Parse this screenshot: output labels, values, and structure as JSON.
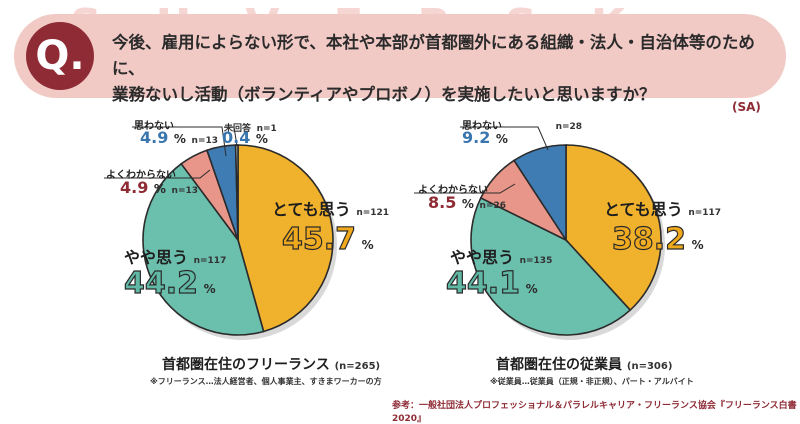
{
  "question": {
    "badge": "Q.",
    "line1": "今後、雇用によらない形で、本社や本部が首都圏外にある組織・法人・自治体等のために、",
    "line2": "業務ないし活動（ボランティアやプロボノ）を実施したいと思いますか？",
    "sa": "(SA)"
  },
  "colors": {
    "strongly_agree": "#f0b12c",
    "somewhat_agree": "#6bbfad",
    "unsure": "#e9968a",
    "disagree": "#3f7cb4",
    "no_answer": "#c9c9c9",
    "accent": "#8e2b35",
    "banner": "#f1c9c5"
  },
  "left": {
    "cat_agree": "とても思う",
    "n_agree": "n=121",
    "pct_agree": "45.7",
    "pct_sign": "%",
    "cat_some": "やや思う",
    "n_some": "n=117",
    "pct_some": "44.2",
    "cat_unsure": "よくわからない",
    "n_unsure": "n=13",
    "pct_unsure": "4.9",
    "cat_dis": "思わない",
    "n_dis": "n=13",
    "pct_dis": "4.9",
    "cat_na": "未回答",
    "n_na": "n=1",
    "pct_na": "0.4",
    "caption": "首都圏在住のフリーランス",
    "caption_n": "(n=265)",
    "note": "※フリーランス…法人経営者、個人事業主、すきまワーカーの方"
  },
  "right": {
    "cat_agree": "とても思う",
    "n_agree": "n=117",
    "pct_agree": "38.2",
    "pct_sign": "%",
    "cat_some": "やや思う",
    "n_some": "n=135",
    "pct_some": "44.1",
    "cat_unsure": "よくわからない",
    "n_unsure": "n=26",
    "pct_unsure": "8.5",
    "cat_dis": "思わない",
    "n_dis": "n=28",
    "pct_dis": "9.2",
    "caption": "首都圏在住の従業員",
    "caption_n": "(n=306)",
    "note": "※従業員…従業員（正規・非正規）、パート・アルバイト"
  },
  "reference": "参考：一般社団法人プロフェッショナル＆パラレルキャリア・フリーランス協会『フリーランス白書2020』",
  "chart_data": [
    {
      "type": "pie",
      "title": "首都圏在住のフリーランス (n=265)",
      "categories": [
        "とても思う",
        "やや思う",
        "よくわからない",
        "思わない",
        "未回答"
      ],
      "values": [
        45.7,
        44.2,
        4.9,
        4.9,
        0.4
      ],
      "counts": [
        121,
        117,
        13,
        13,
        1
      ]
    },
    {
      "type": "pie",
      "title": "首都圏在住の従業員 (n=306)",
      "categories": [
        "とても思う",
        "やや思う",
        "よくわからない",
        "思わない"
      ],
      "values": [
        38.2,
        44.1,
        8.5,
        9.2
      ],
      "counts": [
        117,
        135,
        26,
        28
      ]
    }
  ]
}
